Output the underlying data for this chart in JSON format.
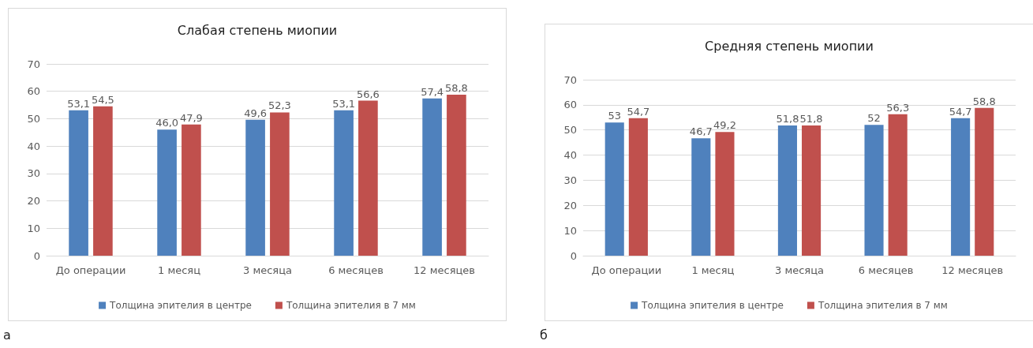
{
  "chart_data": [
    {
      "type": "bar",
      "title": "Слабая степень миопии",
      "categories": [
        "До операции",
        "1 месяц",
        "3 месяца",
        "6 месяцев",
        "12 месяцев"
      ],
      "series": [
        {
          "name": "Толщина эпителия в центре",
          "color": "#4f81bd",
          "values": [
            53.1,
            46.0,
            49.6,
            53.1,
            57.4
          ],
          "value_labels": [
            "53,1",
            "46,0",
            "49,6",
            "53,1",
            "57,4"
          ]
        },
        {
          "name": "Толщина эпителия в 7 мм",
          "color": "#c0504d",
          "values": [
            54.5,
            47.9,
            52.3,
            56.6,
            58.8
          ],
          "value_labels": [
            "54,5",
            "47,9",
            "52,3",
            "56,6",
            "58,8"
          ]
        }
      ],
      "ylim": [
        0,
        70
      ],
      "yticks": [
        0,
        10,
        20,
        30,
        40,
        50,
        60,
        70
      ],
      "grid": "y",
      "legend": "bottom",
      "annotations": [
        "а"
      ]
    },
    {
      "type": "bar",
      "title": "Средняя степень миопии",
      "categories": [
        "До операции",
        "1 месяц",
        "3 месяца",
        "6 месяцев",
        "12 месяцев"
      ],
      "series": [
        {
          "name": "Толщина эпителия в центре",
          "color": "#4f81bd",
          "values": [
            53,
            46.7,
            51.8,
            52,
            54.7
          ],
          "value_labels": [
            "53",
            "46,7",
            "51,8",
            "52",
            "54,7"
          ]
        },
        {
          "name": "Толщина эпителия в 7 мм",
          "color": "#c0504d",
          "values": [
            54.7,
            49.2,
            51.8,
            56.3,
            58.8
          ],
          "value_labels": [
            "54,7",
            "49,2",
            "51,8",
            "56,3",
            "58,8"
          ]
        }
      ],
      "ylim": [
        0,
        70
      ],
      "yticks": [
        0,
        10,
        20,
        30,
        40,
        50,
        60,
        70
      ],
      "grid": "y",
      "legend": "bottom",
      "annotations": [
        "б"
      ]
    }
  ]
}
